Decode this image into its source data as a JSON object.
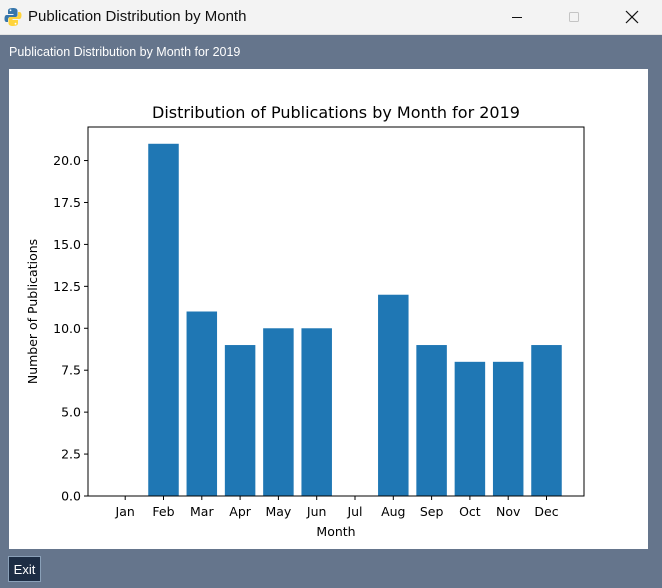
{
  "window": {
    "title": "Publication Distribution by Month"
  },
  "frame": {
    "label": "Publication Distribution by Month for 2019"
  },
  "footer": {
    "exit_label": "Exit"
  },
  "icons": {
    "app": "python-icon",
    "minimize": "minimize-icon",
    "maximize": "maximize-icon",
    "close": "close-icon"
  },
  "colors": {
    "bar": "#1f77b4",
    "frame_background": "#65758c",
    "exit_button": "#1d2d44"
  },
  "chart_data": {
    "type": "bar",
    "title": "Distribution of Publications by Month for 2019",
    "xlabel": "Month",
    "ylabel": "Number of Publications",
    "categories": [
      "Jan",
      "Feb",
      "Mar",
      "Apr",
      "May",
      "Jun",
      "Jul",
      "Aug",
      "Sep",
      "Oct",
      "Nov",
      "Dec"
    ],
    "values": [
      0,
      21,
      11,
      9,
      10,
      10,
      0,
      12,
      9,
      8,
      8,
      9
    ],
    "ylim": [
      0,
      22
    ],
    "yticks": [
      "0.0",
      "2.5",
      "5.0",
      "7.5",
      "10.0",
      "12.5",
      "15.0",
      "17.5",
      "20.0"
    ],
    "grid": false,
    "legend": "none"
  }
}
